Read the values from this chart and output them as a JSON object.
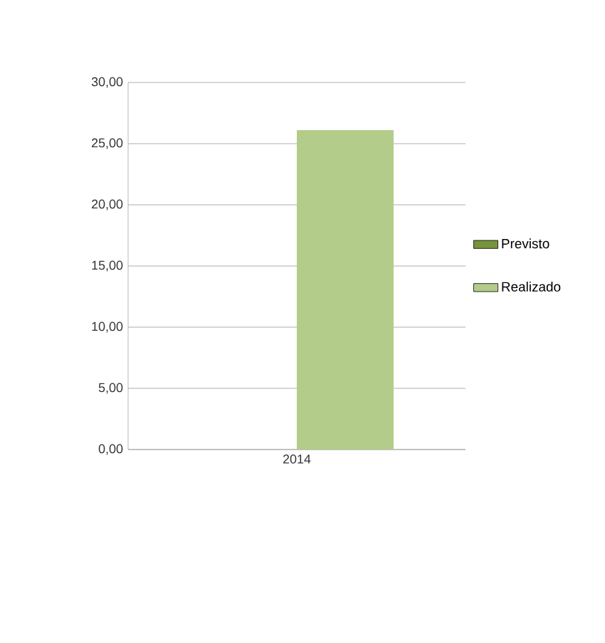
{
  "chart_data": {
    "type": "bar",
    "categories": [
      "2014"
    ],
    "series": [
      {
        "name": "Previsto",
        "color": "#77933c",
        "values": [
          null
        ]
      },
      {
        "name": "Realizado",
        "color": "#b3cc8a",
        "values": [
          26.1
        ]
      }
    ],
    "ylim": [
      0,
      30
    ],
    "yticks": [
      {
        "value": 0,
        "label": "0,00"
      },
      {
        "value": 5,
        "label": "5,00"
      },
      {
        "value": 10,
        "label": "10,00"
      },
      {
        "value": 15,
        "label": "15,00"
      },
      {
        "value": 20,
        "label": "20,00"
      },
      {
        "value": 25,
        "label": "25,00"
      },
      {
        "value": 30,
        "label": "30,00"
      }
    ],
    "grid": "y",
    "legend": "right"
  }
}
